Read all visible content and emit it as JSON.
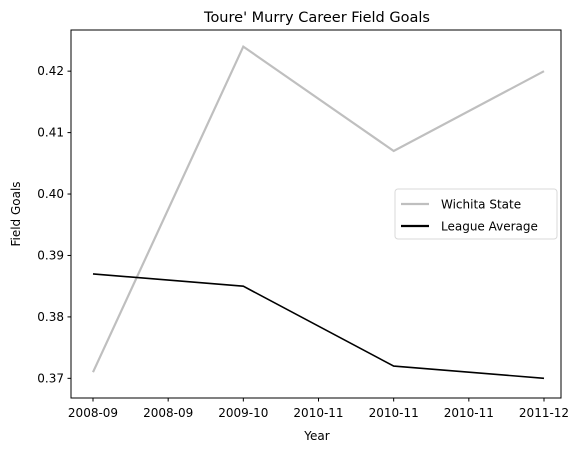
{
  "chart_data": {
    "type": "line",
    "title": "Toure' Murry Career Field Goals",
    "xlabel": "Year",
    "ylabel": "Field Goals",
    "x_tick_labels": [
      "2008-09",
      "2008-09",
      "2009-10",
      "2010-11",
      "2010-11",
      "2010-11",
      "2011-12"
    ],
    "x_categories": [
      "2008-09",
      "2009-10",
      "2010-11",
      "2011-12"
    ],
    "ylim": [
      0.3668,
      0.4267
    ],
    "yticks": [
      0.37,
      0.38,
      0.39,
      0.4,
      0.41,
      0.42
    ],
    "ytick_labels": [
      "0.37",
      "0.38",
      "0.39",
      "0.40",
      "0.41",
      "0.42"
    ],
    "grid": false,
    "legend_position": "center-right",
    "series": [
      {
        "name": "Wichita State",
        "color": "#bfbfbf",
        "values": [
          0.371,
          0.424,
          0.407,
          0.42
        ]
      },
      {
        "name": "League Average",
        "color": "#000000",
        "values": [
          0.387,
          0.385,
          0.372,
          0.37
        ]
      }
    ]
  }
}
